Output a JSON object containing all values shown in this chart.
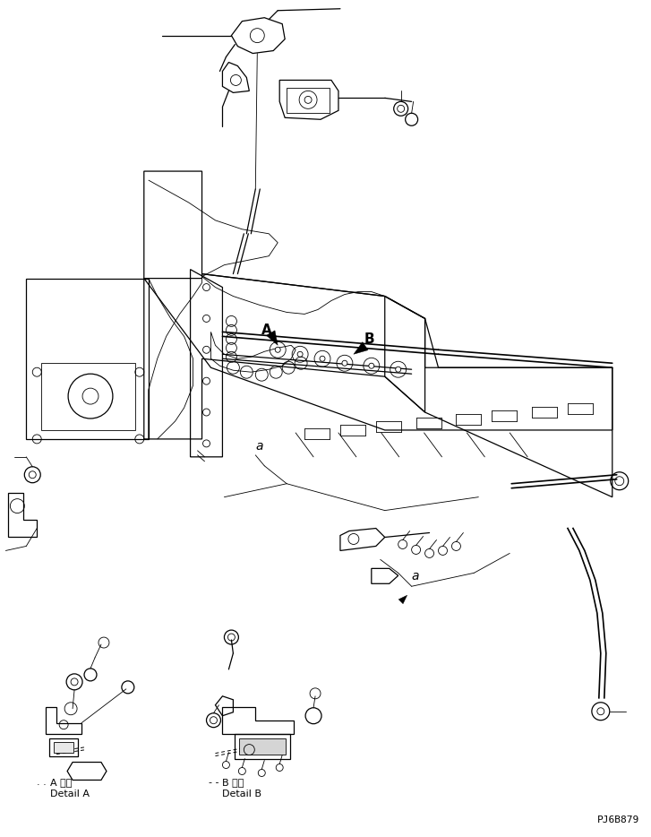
{
  "background_color": "#ffffff",
  "line_color": "#000000",
  "figure_width": 7.27,
  "figure_height": 9.34,
  "dpi": 100,
  "part_code": "PJ6B879",
  "label_A_japanese": "A 詳細",
  "label_A_english": "Detail A",
  "label_B_japanese": "B 詳細",
  "label_B_english": "Detail B",
  "label_a": "a",
  "label_A_marker": "A",
  "label_B_marker": "B",
  "font_size_labels": 8,
  "font_size_markers": 11,
  "font_size_code": 8
}
